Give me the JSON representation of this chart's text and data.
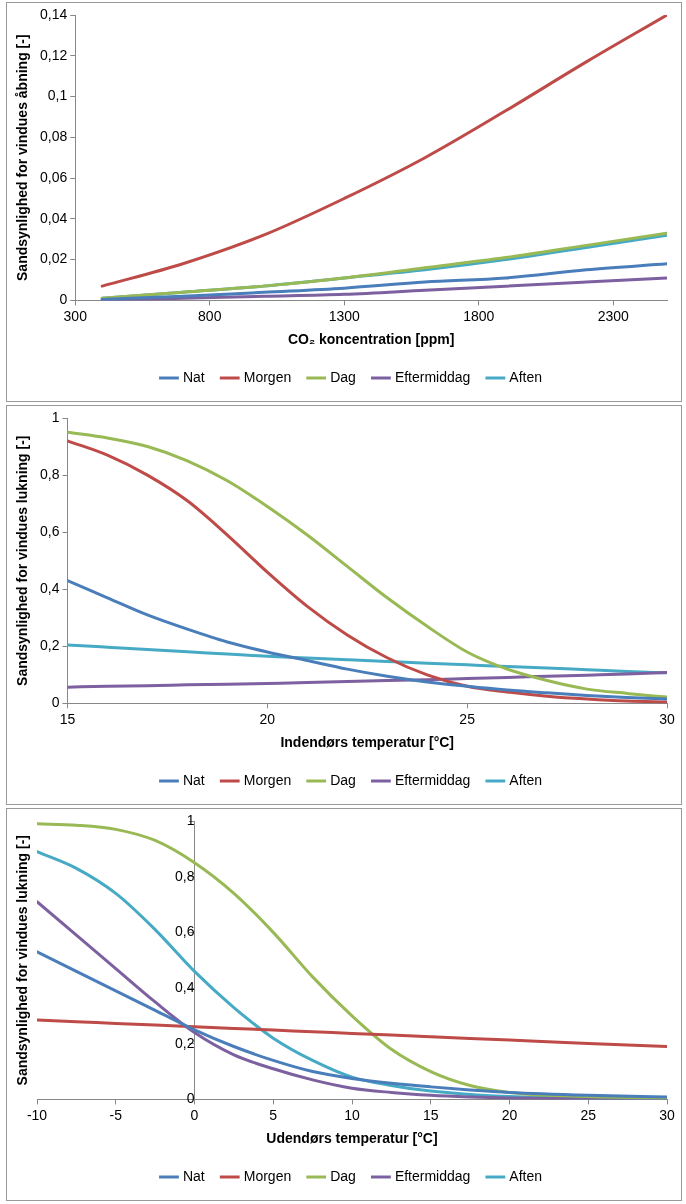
{
  "chart_data": [
    {
      "type": "line",
      "xlabel": "CO₂ koncentration [ppm]",
      "ylabel": "Sandsynlighed for vindues åbning [-]",
      "xlim": [
        300,
        2500
      ],
      "xticks": [
        300,
        800,
        1300,
        1800,
        2300
      ],
      "ylim": [
        0,
        0.14
      ],
      "yticks": [
        {
          "value": 0,
          "label": "0"
        },
        {
          "value": 0.02,
          "label": "0,02"
        },
        {
          "value": 0.04,
          "label": "0,04"
        },
        {
          "value": 0.06,
          "label": "0,06"
        },
        {
          "value": 0.08,
          "label": "0,08"
        },
        {
          "value": 0.1,
          "label": "0,1"
        },
        {
          "value": 0.12,
          "label": "0,12"
        },
        {
          "value": 0.14,
          "label": "0,14"
        }
      ],
      "grid": false,
      "legend": "bottom",
      "marker": "none",
      "line_style": "solid",
      "x": [
        400,
        700,
        1000,
        1300,
        1600,
        1900,
        2200,
        2500
      ],
      "series": [
        {
          "name": "Nat",
          "color": "#4a7ebb",
          "values": [
            0.0005,
            0.002,
            0.004,
            0.006,
            0.009,
            0.011,
            0.015,
            0.018
          ]
        },
        {
          "name": "Morgen",
          "color": "#be4b48",
          "values": [
            0.007,
            0.018,
            0.032,
            0.05,
            0.07,
            0.093,
            0.117,
            0.14
          ]
        },
        {
          "name": "Dag",
          "color": "#98b954",
          "values": [
            0.001,
            0.004,
            0.007,
            0.011,
            0.016,
            0.021,
            0.027,
            0.033
          ]
        },
        {
          "name": "Eftermiddag",
          "color": "#7d60a0",
          "values": [
            0,
            0.001,
            0.002,
            0.003,
            0.005,
            0.007,
            0.009,
            0.011
          ]
        },
        {
          "name": "Aften",
          "color": "#46aac5",
          "values": [
            0.001,
            0.004,
            0.007,
            0.011,
            0.015,
            0.02,
            0.026,
            0.032
          ]
        }
      ]
    },
    {
      "type": "line",
      "xlabel": "Indendørs temperatur [°C]",
      "ylabel": "Sandsynlighed for vindues lukning [-]",
      "xlim": [
        15,
        30
      ],
      "xticks": [
        15,
        20,
        25,
        30
      ],
      "ylim": [
        0,
        1
      ],
      "yticks": [
        {
          "value": 0,
          "label": "0"
        },
        {
          "value": 0.2,
          "label": "0,2"
        },
        {
          "value": 0.4,
          "label": "0,4"
        },
        {
          "value": 0.6,
          "label": "0,6"
        },
        {
          "value": 0.8,
          "label": "0,8"
        },
        {
          "value": 1,
          "label": "1"
        }
      ],
      "grid": false,
      "legend": "bottom",
      "marker": "none",
      "line_style": "solid",
      "x": [
        15,
        16,
        17,
        18,
        19,
        20,
        21,
        22,
        23,
        24,
        25,
        26,
        27,
        28,
        29,
        30
      ],
      "series": [
        {
          "name": "Nat",
          "color": "#4a7ebb",
          "values": [
            0.43,
            0.37,
            0.31,
            0.26,
            0.215,
            0.18,
            0.15,
            0.12,
            0.095,
            0.075,
            0.06,
            0.047,
            0.037,
            0.028,
            0.021,
            0.015
          ]
        },
        {
          "name": "Morgen",
          "color": "#be4b48",
          "values": [
            0.92,
            0.87,
            0.8,
            0.71,
            0.59,
            0.46,
            0.34,
            0.24,
            0.16,
            0.1,
            0.06,
            0.04,
            0.025,
            0.015,
            0.008,
            0.005
          ]
        },
        {
          "name": "Dag",
          "color": "#98b954",
          "values": [
            0.95,
            0.93,
            0.9,
            0.85,
            0.78,
            0.69,
            0.59,
            0.48,
            0.37,
            0.27,
            0.18,
            0.12,
            0.08,
            0.05,
            0.035,
            0.022
          ]
        },
        {
          "name": "Eftermiddag",
          "color": "#7d60a0",
          "values": [
            0.057,
            0.06,
            0.062,
            0.065,
            0.067,
            0.07,
            0.073,
            0.077,
            0.08,
            0.083,
            0.087,
            0.091,
            0.095,
            0.099,
            0.103,
            0.108
          ]
        },
        {
          "name": "Aften",
          "color": "#46aac5",
          "values": [
            0.205,
            0.197,
            0.189,
            0.181,
            0.173,
            0.165,
            0.159,
            0.153,
            0.147,
            0.141,
            0.135,
            0.129,
            0.124,
            0.118,
            0.112,
            0.107
          ]
        }
      ]
    },
    {
      "type": "line",
      "xlabel": "Udendørs temperatur [°C]",
      "ylabel": "Sandsynlighed for vindues lukning [-]",
      "xlim": [
        -10,
        30
      ],
      "xticks": [
        -10,
        -5,
        0,
        5,
        10,
        15,
        20,
        25,
        30
      ],
      "ylim": [
        0,
        1
      ],
      "yticks": [
        {
          "value": 0,
          "label": "0"
        },
        {
          "value": 0.2,
          "label": "0,2"
        },
        {
          "value": 0.4,
          "label": "0,4"
        },
        {
          "value": 0.6,
          "label": "0,6"
        },
        {
          "value": 0.8,
          "label": "0,8"
        },
        {
          "value": 1,
          "label": "1"
        }
      ],
      "grid": false,
      "legend": "bottom",
      "marker": "none",
      "line_style": "solid",
      "x": [
        -10,
        -7.5,
        -5,
        -2.5,
        0,
        2.5,
        5,
        7.5,
        10,
        12.5,
        15,
        17.5,
        20,
        25,
        30
      ],
      "series": [
        {
          "name": "Nat",
          "color": "#4a7ebb",
          "values": [
            0.53,
            0.46,
            0.39,
            0.32,
            0.25,
            0.19,
            0.14,
            0.1,
            0.075,
            0.058,
            0.045,
            0.034,
            0.025,
            0.015,
            0.009
          ]
        },
        {
          "name": "Morgen",
          "color": "#be4b48",
          "values": [
            0.285,
            0.279,
            0.273,
            0.267,
            0.261,
            0.255,
            0.249,
            0.243,
            0.237,
            0.231,
            0.225,
            0.219,
            0.213,
            0.201,
            0.19
          ]
        },
        {
          "name": "Dag",
          "color": "#98b954",
          "values": [
            0.99,
            0.985,
            0.97,
            0.93,
            0.85,
            0.74,
            0.6,
            0.44,
            0.3,
            0.18,
            0.1,
            0.05,
            0.025,
            0.01,
            0.005
          ]
        },
        {
          "name": "Eftermiddag",
          "color": "#7d60a0",
          "values": [
            0.71,
            0.59,
            0.47,
            0.35,
            0.24,
            0.16,
            0.11,
            0.07,
            0.04,
            0.025,
            0.015,
            0.009,
            0.005,
            0.002,
            0.001
          ]
        },
        {
          "name": "Aften",
          "color": "#46aac5",
          "values": [
            0.89,
            0.83,
            0.74,
            0.61,
            0.46,
            0.33,
            0.22,
            0.14,
            0.08,
            0.05,
            0.03,
            0.018,
            0.01,
            0.004,
            0.002
          ]
        }
      ]
    }
  ]
}
